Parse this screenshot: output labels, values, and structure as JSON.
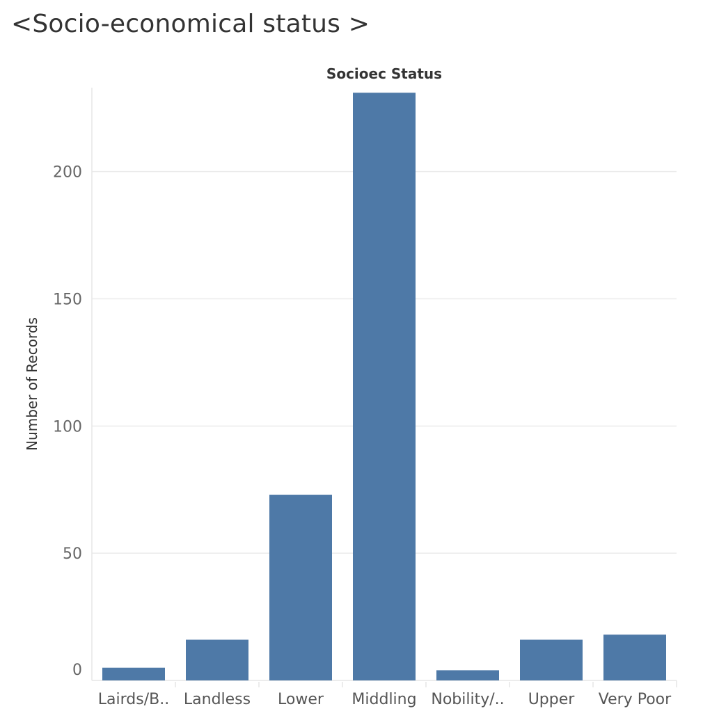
{
  "page": {
    "title": "<Socio-economical status >"
  },
  "chart_data": {
    "type": "bar",
    "title": "Socioec Status",
    "xlabel": "Socioec Status",
    "ylabel": "Number of Records",
    "categories": [
      "Lairds/B..",
      "Landless",
      "Lower",
      "Middling",
      "Nobility/..",
      "Upper",
      "Very Poor"
    ],
    "values": [
      5,
      16,
      73,
      231,
      4,
      16,
      18
    ],
    "ylim": [
      0,
      233
    ],
    "yticks": [
      0,
      50,
      100,
      150,
      200
    ],
    "grid": true,
    "bar_color": "#4e79a7",
    "grid_color": "#ebebeb"
  }
}
